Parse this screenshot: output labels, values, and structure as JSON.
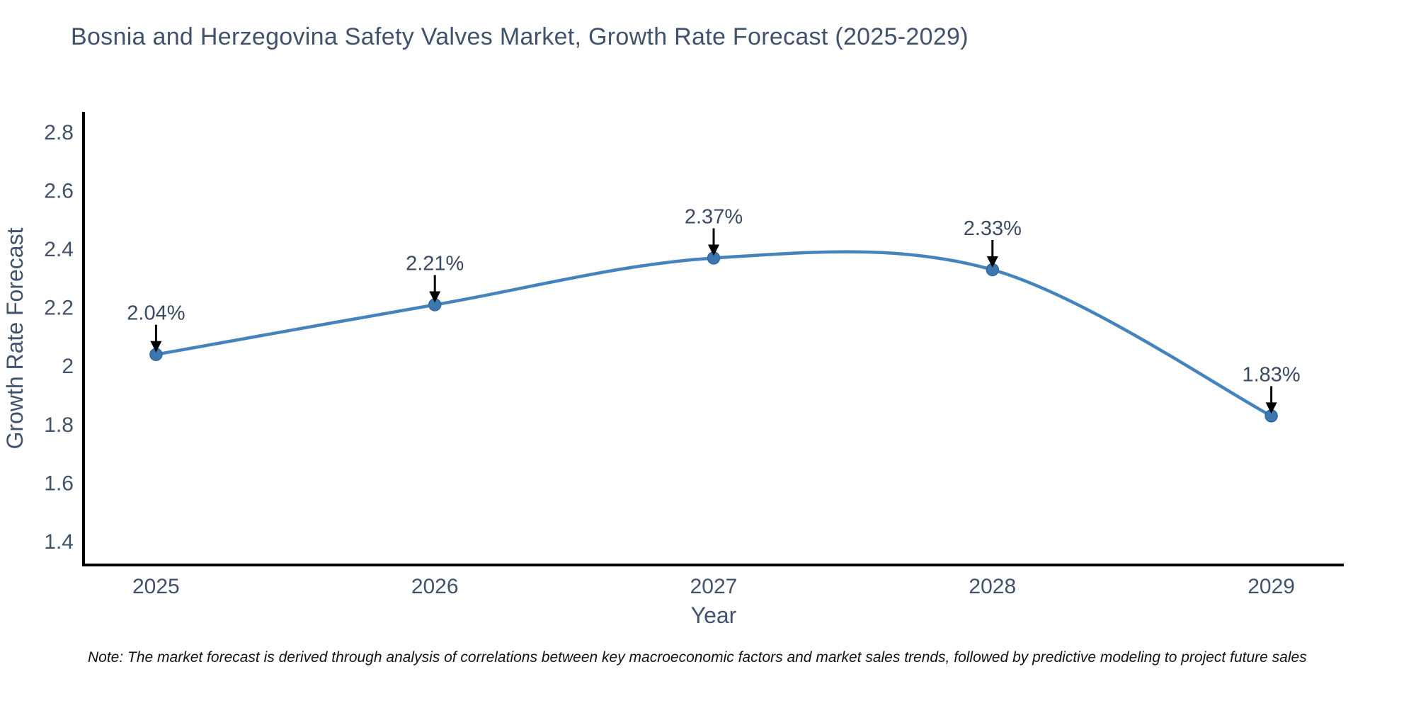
{
  "title": "Bosnia and Herzegovina Safety Valves Market, Growth Rate Forecast (2025-2029)",
  "note": "Note: The market forecast is derived through analysis of correlations between key macroeconomic factors and market sales trends, followed by predictive modeling to project future sales",
  "chart_data": {
    "type": "line",
    "title": "Bosnia and Herzegovina Safety Valves Market, Growth Rate Forecast (2025-2029)",
    "x": [
      2025,
      2026,
      2027,
      2028,
      2029
    ],
    "values": [
      2.04,
      2.21,
      2.37,
      2.33,
      1.83
    ],
    "point_labels": [
      "2.04%",
      "2.21%",
      "2.37%",
      "2.33%",
      "1.83%"
    ],
    "xlabel": "Year",
    "ylabel": "Growth Rate Forecast",
    "x_ticks": [
      "2025",
      "2026",
      "2027",
      "2028",
      "2029"
    ],
    "y_ticks": [
      "1.4",
      "1.6",
      "1.8",
      "2",
      "2.2",
      "2.4",
      "2.6",
      "2.8"
    ],
    "xlim": [
      2024.74,
      2029.26
    ],
    "ylim": [
      1.32,
      2.87
    ],
    "line_shape": "spline",
    "grid": false,
    "legend": "none",
    "colors": {
      "line": "#4483bc",
      "marker": "#3c78b0",
      "marker_edge": "#33689e",
      "axis": "#000000",
      "text": "#42526b",
      "annotation_text": "#3b4a63",
      "arrow": "#000000"
    }
  }
}
